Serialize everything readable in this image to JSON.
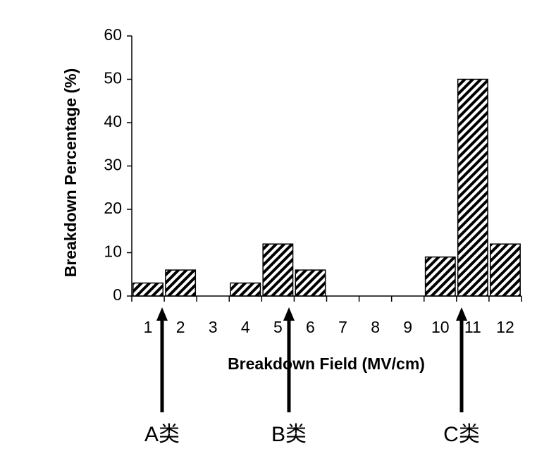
{
  "chart_data": {
    "type": "bar",
    "xlabel": "Breakdown Field (MV/cm)",
    "ylabel": "Breakdown Percentage (%)",
    "categories": [
      "1",
      "2",
      "3",
      "4",
      "5",
      "6",
      "7",
      "8",
      "9",
      "10",
      "11",
      "12"
    ],
    "values": [
      3,
      6,
      0,
      3,
      12,
      6,
      0,
      0,
      0,
      9,
      50,
      12
    ],
    "color": "#000000",
    "ylim": [
      0,
      60
    ],
    "yticks": [
      0,
      10,
      20,
      30,
      40,
      50,
      60
    ],
    "grid": false,
    "annotations": [
      "A类",
      "B类",
      "C类"
    ]
  }
}
